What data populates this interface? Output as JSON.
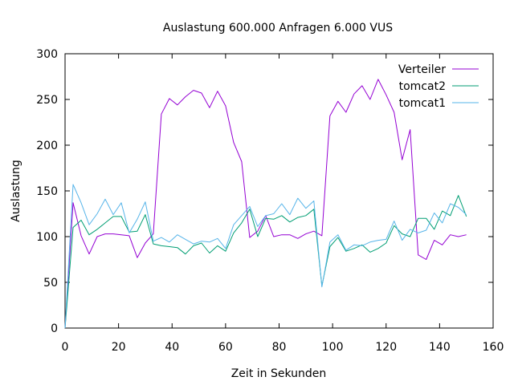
{
  "chart_data": {
    "type": "line",
    "title": "Auslastung 600.000 Anfragen 6.000 VUS",
    "xlabel": "Zeit in Sekunden",
    "ylabel": "Auslastung",
    "xlim": [
      0,
      160
    ],
    "ylim": [
      0,
      300
    ],
    "xticks": [
      0,
      20,
      40,
      60,
      80,
      100,
      120,
      140,
      160
    ],
    "yticks": [
      0,
      50,
      100,
      150,
      200,
      250,
      300
    ],
    "grid": false,
    "legend_position": "top-right",
    "series": [
      {
        "name": "Verteiler",
        "color": "#9400d3",
        "x": [
          0,
          3,
          6,
          9,
          12,
          15,
          18,
          21,
          24,
          27,
          30,
          33,
          36,
          39,
          42,
          45,
          48,
          51,
          54,
          57,
          60,
          63,
          66,
          69,
          72,
          75,
          78,
          81,
          84,
          87,
          90,
          93,
          96,
          99,
          102,
          105,
          108,
          111,
          114,
          117,
          120,
          123,
          126,
          129,
          132,
          135,
          138,
          141,
          144,
          147,
          150
        ],
        "values": [
          0,
          137,
          101,
          81,
          100,
          103,
          103,
          102,
          101,
          77,
          93,
          103,
          234,
          251,
          244,
          253,
          260,
          257,
          241,
          259,
          243,
          203,
          182,
          99,
          106,
          123,
          100,
          102,
          102,
          98,
          103,
          106,
          101,
          232,
          248,
          236,
          256,
          265,
          250,
          272,
          255,
          236,
          184,
          217,
          80,
          75,
          96,
          91,
          102,
          100,
          102
        ]
      },
      {
        "name": "tomcat2",
        "color": "#009e73",
        "x": [
          0,
          3,
          6,
          9,
          12,
          15,
          18,
          21,
          24,
          27,
          30,
          33,
          36,
          39,
          42,
          45,
          48,
          51,
          54,
          57,
          60,
          63,
          66,
          69,
          72,
          75,
          78,
          81,
          84,
          87,
          90,
          93,
          96,
          99,
          102,
          105,
          108,
          111,
          114,
          117,
          120,
          123,
          126,
          129,
          132,
          135,
          138,
          141,
          144,
          147,
          150
        ],
        "values": [
          0,
          110,
          118,
          102,
          108,
          115,
          122,
          122,
          105,
          106,
          124,
          92,
          90,
          89,
          88,
          81,
          90,
          93,
          82,
          90,
          84,
          104,
          115,
          130,
          100,
          120,
          119,
          123,
          116,
          121,
          123,
          130,
          46,
          89,
          99,
          84,
          87,
          91,
          83,
          87,
          93,
          112,
          103,
          100,
          120,
          120,
          108,
          128,
          123,
          145,
          122
        ]
      },
      {
        "name": "tomcat1",
        "color": "#56b4e9",
        "x": [
          0,
          3,
          6,
          9,
          12,
          15,
          18,
          21,
          24,
          27,
          30,
          33,
          36,
          39,
          42,
          45,
          48,
          51,
          54,
          57,
          60,
          63,
          66,
          69,
          72,
          75,
          78,
          81,
          84,
          87,
          90,
          93,
          96,
          99,
          102,
          105,
          108,
          111,
          114,
          117,
          120,
          123,
          126,
          129,
          132,
          135,
          138,
          141,
          144,
          147,
          150
        ],
        "values": [
          0,
          157,
          137,
          113,
          125,
          141,
          124,
          137,
          104,
          119,
          138,
          95,
          99,
          94,
          102,
          97,
          92,
          95,
          94,
          98,
          87,
          113,
          123,
          133,
          111,
          123,
          125,
          136,
          124,
          142,
          131,
          139,
          45,
          94,
          102,
          85,
          91,
          90,
          94,
          96,
          97,
          117,
          96,
          108,
          104,
          107,
          126,
          115,
          136,
          132,
          124
        ]
      }
    ]
  }
}
